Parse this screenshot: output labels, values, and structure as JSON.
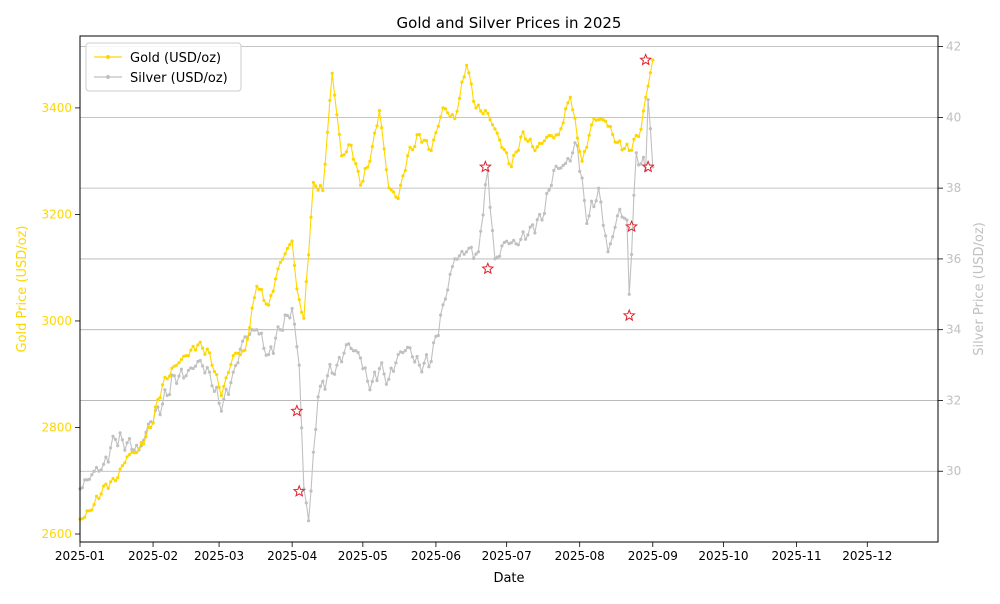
{
  "chart_data": {
    "type": "line",
    "title": "Gold and Silver Prices in 2025",
    "xlabel": "Date",
    "ylabel_left": "Gold Price (USD/oz)",
    "ylabel_right": "Silver Price (USD/oz)",
    "x_range": [
      "2025-01-01",
      "2025-12-31"
    ],
    "x_ticks": [
      "2025-01",
      "2025-02",
      "2025-03",
      "2025-04",
      "2025-05",
      "2025-06",
      "2025-07",
      "2025-08",
      "2025-09",
      "2025-10",
      "2025-11",
      "2025-12"
    ],
    "y_left_range": [
      2585,
      3535
    ],
    "y_left_ticks": [
      2600,
      2800,
      3000,
      3200,
      3400
    ],
    "y_right_range": [
      28.0,
      42.3
    ],
    "y_right_ticks": [
      30,
      32,
      34,
      36,
      38,
      40,
      42
    ],
    "grid": "horizontal lines at right-axis ticks",
    "legend_position": "top-left",
    "colors": {
      "gold": "#FFD700",
      "silver": "#C0C0C0",
      "anomaly_marker": "#E0202A",
      "text": "#000000"
    },
    "series": [
      {
        "name": "Gold (USD/oz)",
        "axis": "left",
        "x": [
          "2025-01-01",
          "2025-01-06",
          "2025-01-11",
          "2025-01-16",
          "2025-01-21",
          "2025-01-26",
          "2025-01-31",
          "2025-02-05",
          "2025-02-10",
          "2025-02-15",
          "2025-02-20",
          "2025-02-25",
          "2025-03-02",
          "2025-03-07",
          "2025-03-12",
          "2025-03-17",
          "2025-03-22",
          "2025-03-27",
          "2025-04-01",
          "2025-04-03",
          "2025-04-06",
          "2025-04-10",
          "2025-04-14",
          "2025-04-18",
          "2025-04-22",
          "2025-04-26",
          "2025-04-30",
          "2025-05-04",
          "2025-05-08",
          "2025-05-12",
          "2025-05-16",
          "2025-05-20",
          "2025-05-25",
          "2025-05-30",
          "2025-06-04",
          "2025-06-09",
          "2025-06-14",
          "2025-06-18",
          "2025-06-23",
          "2025-06-28",
          "2025-07-03",
          "2025-07-08",
          "2025-07-13",
          "2025-07-18",
          "2025-07-23",
          "2025-07-28",
          "2025-08-02",
          "2025-08-07",
          "2025-08-12",
          "2025-08-17",
          "2025-08-22",
          "2025-08-27",
          "2025-08-29",
          "2025-09-01"
        ],
        "values": [
          2628,
          2645,
          2690,
          2700,
          2745,
          2760,
          2800,
          2880,
          2915,
          2935,
          2955,
          2940,
          2860,
          2935,
          2945,
          3065,
          3030,
          3110,
          3150,
          3060,
          3005,
          3260,
          3245,
          3465,
          3310,
          3330,
          3255,
          3300,
          3395,
          3250,
          3230,
          3310,
          3350,
          3320,
          3400,
          3380,
          3480,
          3400,
          3390,
          3340,
          3290,
          3355,
          3320,
          3345,
          3350,
          3420,
          3300,
          3380,
          3375,
          3335,
          3320,
          3360,
          3420,
          3490
        ]
      },
      {
        "name": "Silver (USD/oz)",
        "axis": "right",
        "x": [
          "2025-01-01",
          "2025-01-06",
          "2025-01-11",
          "2025-01-16",
          "2025-01-21",
          "2025-01-26",
          "2025-01-31",
          "2025-02-05",
          "2025-02-10",
          "2025-02-15",
          "2025-02-20",
          "2025-02-25",
          "2025-03-02",
          "2025-03-07",
          "2025-03-12",
          "2025-03-17",
          "2025-03-22",
          "2025-03-27",
          "2025-04-01",
          "2025-04-04",
          "2025-04-06",
          "2025-04-08",
          "2025-04-12",
          "2025-04-16",
          "2025-04-20",
          "2025-04-25",
          "2025-04-30",
          "2025-05-04",
          "2025-05-08",
          "2025-05-12",
          "2025-05-16",
          "2025-05-20",
          "2025-05-25",
          "2025-05-30",
          "2025-06-04",
          "2025-06-09",
          "2025-06-14",
          "2025-06-19",
          "2025-06-22",
          "2025-06-23",
          "2025-06-26",
          "2025-07-01",
          "2025-07-06",
          "2025-07-11",
          "2025-07-16",
          "2025-07-21",
          "2025-07-26",
          "2025-07-31",
          "2025-08-04",
          "2025-08-09",
          "2025-08-13",
          "2025-08-18",
          "2025-08-21",
          "2025-08-22",
          "2025-08-25",
          "2025-08-29",
          "2025-08-30",
          "2025-09-01"
        ],
        "values": [
          29.5,
          29.9,
          30.2,
          30.9,
          30.8,
          30.6,
          31.4,
          31.9,
          32.7,
          32.7,
          33.1,
          32.8,
          31.7,
          32.8,
          33.8,
          34.0,
          33.3,
          34.0,
          34.6,
          33.0,
          29.5,
          28.6,
          32.1,
          32.7,
          33.0,
          33.6,
          33.2,
          32.3,
          32.9,
          32.6,
          33.3,
          33.5,
          33.0,
          33.1,
          34.7,
          36.0,
          36.2,
          36.2,
          38.1,
          38.5,
          36.0,
          36.5,
          36.4,
          36.9,
          37.1,
          38.5,
          38.7,
          39.2,
          37.0,
          38.0,
          36.2,
          37.4,
          37.1,
          35.0,
          39.0,
          38.5,
          40.5,
          38.6
        ]
      }
    ],
    "anomalies": {
      "gold": [
        {
          "x": "2025-04-04",
          "value": 2680
        },
        {
          "x": "2025-06-23",
          "value": 3098
        },
        {
          "x": "2025-08-22",
          "value": 3010
        },
        {
          "x": "2025-08-23",
          "value": 3177
        },
        {
          "x": "2025-08-29",
          "value": 3490
        }
      ],
      "silver": [
        {
          "x": "2025-04-03",
          "value": 31.7
        },
        {
          "x": "2025-06-22",
          "value": 38.6
        },
        {
          "x": "2025-08-30",
          "value": 38.6
        }
      ]
    }
  }
}
